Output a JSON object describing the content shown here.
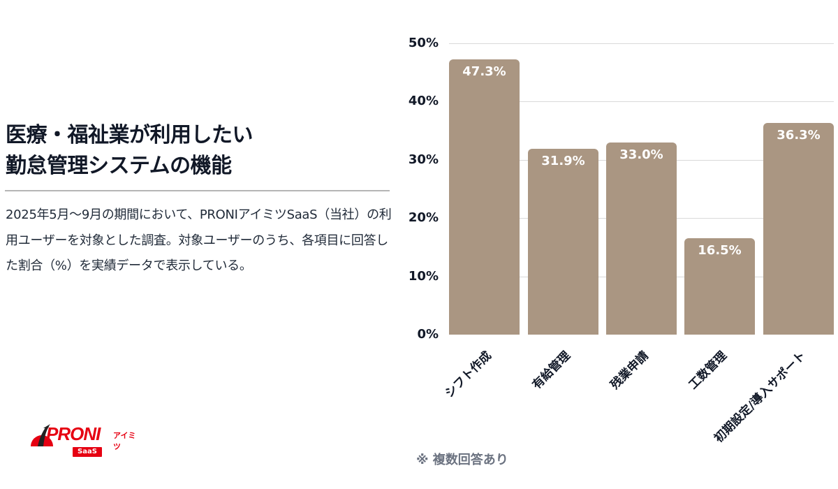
{
  "header": {
    "title_line1": "医療・福祉業が利用したい",
    "title_line2": "勤怠管理システムの機能"
  },
  "description": "2025年5月〜9月の期間において、PRONIアイミツSaaS（当社）の利用ユーザーを対象とした調査。対象ユーザーのうち、各項目に回答した割合（%）を実績データで表示している。",
  "logo": {
    "brand": "PRONI",
    "brand_sub": "アイミツ",
    "badge": "SaaS"
  },
  "note": "※ 複数回答あり",
  "colors": {
    "bar": "#aa9682",
    "brand": "#e60012",
    "text": "#111827"
  },
  "chart_data": {
    "type": "bar",
    "title": "医療・福祉業が利用したい勤怠管理システムの機能",
    "categories": [
      "シフト作成",
      "有給管理",
      "残業申請",
      "工数管理",
      "初期設定/導入サポート"
    ],
    "values": [
      47.3,
      31.9,
      33.0,
      16.5,
      36.3
    ],
    "value_labels": [
      "47.3%",
      "31.9%",
      "33.0%",
      "16.5%",
      "36.3%"
    ],
    "xlabel": "",
    "ylabel": "",
    "ylim": [
      0,
      50
    ],
    "yticks": [
      "0%",
      "10%",
      "20%",
      "30%",
      "40%",
      "50%"
    ],
    "grid": true,
    "legend": null,
    "annotation": "※ 複数回答あり"
  }
}
